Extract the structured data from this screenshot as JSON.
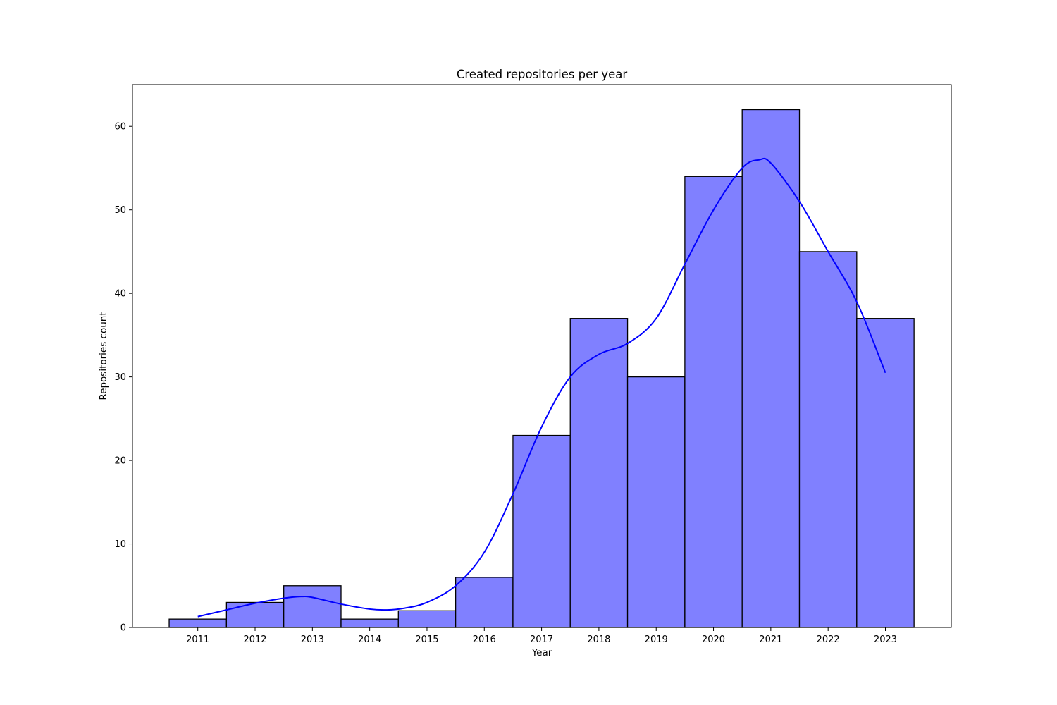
{
  "chart_data": {
    "type": "bar",
    "title": "Created repositories per year",
    "xlabel": "Year",
    "ylabel": "Repositories count",
    "categories": [
      "2011",
      "2012",
      "2013",
      "2014",
      "2015",
      "2016",
      "2017",
      "2018",
      "2019",
      "2020",
      "2021",
      "2022",
      "2023"
    ],
    "values": [
      1,
      3,
      5,
      1,
      2,
      6,
      23,
      37,
      30,
      54,
      62,
      45,
      37
    ],
    "ylim": [
      0,
      65
    ],
    "yticks": [
      0,
      10,
      20,
      30,
      40,
      50,
      60
    ],
    "xlim": [
      2009.86,
      2024.15
    ],
    "bar_color": "#8080ff",
    "bar_edge_color": "#000000",
    "grid": false,
    "kde": {
      "color": "#0000ff",
      "x": [
        2011,
        2011.5,
        2012,
        2012.5,
        2012.8,
        2013,
        2013.5,
        2014,
        2014.3,
        2014.6,
        2015,
        2015.5,
        2016,
        2016.5,
        2017,
        2017.5,
        2018,
        2018.5,
        2019,
        2019.5,
        2020,
        2020.5,
        2020.8,
        2021,
        2021.5,
        2022,
        2022.5,
        2023
      ],
      "y": [
        1.3,
        2.1,
        2.9,
        3.5,
        3.7,
        3.6,
        2.8,
        2.2,
        2.1,
        2.3,
        3.0,
        5.0,
        9.0,
        16.0,
        24.0,
        30.0,
        32.7,
        34.0,
        37.0,
        43.5,
        50.0,
        55.0,
        56.0,
        55.6,
        51.0,
        45.0,
        39.0,
        30.5
      ]
    }
  }
}
